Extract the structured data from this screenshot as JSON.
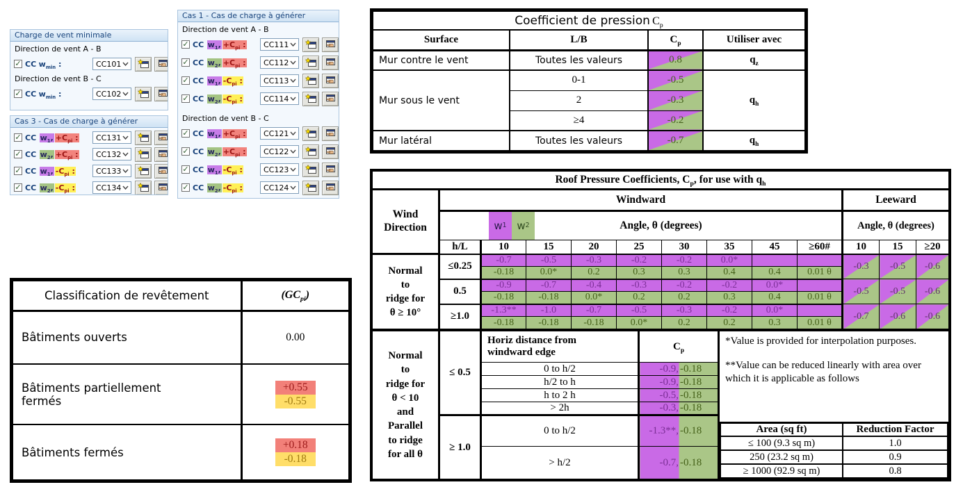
{
  "colors": {
    "roof_purple": "#c96ae6",
    "roof_green": "#aac687",
    "chip_purple": "#c77ce8",
    "chip_green": "#a3c383",
    "chip_salmon": "#f2837d",
    "chip_yellow": "#fff056",
    "gcpi_red": "#f28079",
    "gcpi_yellow": "#ffde69",
    "purple_text": "#7b2e96",
    "green_text": "#446018",
    "panel_navy": "#17417a"
  },
  "icons": {
    "checkbox_check": "✓",
    "combo_chevron": "chevron-down",
    "new_button": "new-window-with-star",
    "edit_button": "edit-hand-on-window"
  },
  "panels": {
    "cc_label": "CC",
    "wmin_def": {
      "base": "w",
      "sub": "min",
      "suffix": " :"
    },
    "chip_defs": {
      "w1": {
        "base": "w",
        "sub": "1",
        "suffix": ",",
        "cls": "chip-w1"
      },
      "w2": {
        "base": "w",
        "sub": "2",
        "suffix": ",",
        "cls": "chip-w2"
      },
      "plus": {
        "base": "+C",
        "sub": "pi",
        "suffix": " :",
        "cls": "chip-plus"
      },
      "minus": {
        "base": "-C",
        "sub": "pi",
        "suffix": " :",
        "cls": "chip-minus"
      }
    },
    "min_load": {
      "title": "Charge de vent minimale",
      "groups": [
        {
          "label": "Direction de vent A - B",
          "rows": [
            {
              "kind": "wmin",
              "cc": "CC101"
            }
          ]
        },
        {
          "label": "Direction de vent B - C",
          "rows": [
            {
              "kind": "wmin",
              "cc": "CC102"
            }
          ]
        }
      ]
    },
    "cas1": {
      "title": "Cas 1 - Cas de charge à générer",
      "groups": [
        {
          "label": "Direction de vent A - B",
          "rows": [
            {
              "kind": "w1p",
              "cc": "CC111"
            },
            {
              "kind": "w2p",
              "cc": "CC112"
            },
            {
              "kind": "w1m",
              "cc": "CC113"
            },
            {
              "kind": "w2m",
              "cc": "CC114"
            }
          ]
        },
        {
          "label": "Direction de vent B - C",
          "rows": [
            {
              "kind": "w1p",
              "cc": "CC121"
            },
            {
              "kind": "w2p",
              "cc": "CC122"
            },
            {
              "kind": "w1m",
              "cc": "CC123"
            },
            {
              "kind": "w2m",
              "cc": "CC124"
            }
          ]
        }
      ]
    },
    "cas3": {
      "title": "Cas 3 - Cas de charge à générer",
      "groups": [
        {
          "label": null,
          "rows": [
            {
              "kind": "w1p",
              "cc": "CC131"
            },
            {
              "kind": "w2p",
              "cc": "CC132"
            },
            {
              "kind": "w1m",
              "cc": "CC133"
            },
            {
              "kind": "w2m",
              "cc": "CC134"
            }
          ]
        }
      ]
    }
  },
  "cp_table": {
    "title_text": "Coefficient de pression",
    "title_sym": {
      "base": "C",
      "sub": "p"
    },
    "headers": {
      "surface": "Surface",
      "lb": "L/B",
      "cp": {
        "base": "C",
        "sub": "p"
      },
      "use": "Utiliser avec"
    },
    "rows": [
      {
        "surface": "Mur contre le vent",
        "lb": "Toutes les valeurs",
        "cp": "0.8",
        "use": {
          "base": "q",
          "sub": "z"
        }
      },
      {
        "surface": "Mur sous le vent",
        "lb": "0-1",
        "cp": "-0.5",
        "use": {
          "base": "q",
          "sub": "h"
        }
      },
      {
        "lb": "2",
        "cp": "-0.3"
      },
      {
        "lb": "≥4",
        "cp": "-0.2"
      },
      {
        "surface": "Mur latéral",
        "lb": "Toutes les valeurs",
        "cp": "-0.7",
        "use": {
          "base": "q",
          "sub": "h"
        }
      }
    ]
  },
  "gcpi_table": {
    "header_left": "Classification de revêtement",
    "header_sym": {
      "pre": "(GC",
      "sub": "pi",
      "post": ")"
    },
    "rows": [
      {
        "label": "Bâtiments ouverts",
        "plain": "0.00"
      },
      {
        "label": "Bâtiments partiellement\nfermés",
        "pos": "+0.55",
        "neg": "-0.55"
      },
      {
        "label": "Bâtiments fermés",
        "pos": "+0.18",
        "neg": "-0.18"
      }
    ]
  },
  "roof_table": {
    "title": {
      "pre": "Roof Pressure Coefficients, C",
      "sub1": "p",
      "mid": ", for use with q",
      "sub2": "h"
    },
    "wind_direction_label": "Wind Direction",
    "windward_label": "Windward",
    "leeward_label": "Leeward",
    "angle_label": "Angle, θ (degrees)",
    "chips": [
      {
        "base": "w",
        "sub": "1"
      },
      {
        "base": "w",
        "sub": "2"
      }
    ],
    "hl_label": "h/L",
    "windward_angles": [
      "10",
      "15",
      "20",
      "25",
      "30",
      "35",
      "45",
      "≥60#"
    ],
    "leeward_angles": [
      "10",
      "15",
      "≥20"
    ],
    "section1_label": [
      "Normal",
      "to",
      "ridge for",
      "θ ≥ 10°"
    ],
    "section1_rows": [
      {
        "hl": "≤0.25",
        "w1": [
          "-0.7",
          "-0.5",
          "-0.3",
          "-0.2",
          "-0.2",
          "0.0*",
          "",
          ""
        ],
        "w2": [
          "-0.18",
          "0.0*",
          "0.2",
          "0.3",
          "0.3",
          "0.4",
          "0.4",
          "0.01 θ"
        ],
        "leeward": [
          "-0.3",
          "-0.5",
          "-0.6"
        ]
      },
      {
        "hl": "0.5",
        "w1": [
          "-0.9",
          "-0.7",
          "-0.4",
          "-0.3",
          "-0.2",
          "-0.2",
          "0.0*",
          ""
        ],
        "w2": [
          "-0.18",
          "-0.18",
          "0.0*",
          "0.2",
          "0.2",
          "0.3",
          "0.4",
          "0.01 θ"
        ],
        "leeward": [
          "-0.5",
          "-0.5",
          "-0.6"
        ]
      },
      {
        "hl": "≥1.0",
        "w1": [
          "-1.3**",
          "-1.0",
          "-0.7",
          "-0.5",
          "-0.3",
          "-0.2",
          "0.0*",
          ""
        ],
        "w2": [
          "-0.18",
          "-0.18",
          "-0.18",
          "0.0*",
          "0.2",
          "0.2",
          "0.3",
          "0.01 θ"
        ],
        "leeward": [
          "-0.7",
          "-0.6",
          "-0.6"
        ]
      }
    ],
    "section2_label": [
      "Normal",
      "to",
      "ridge for",
      "θ < 10",
      "and",
      "Parallel",
      "to ridge",
      "for all θ"
    ],
    "horiz_header": [
      "Horiz distance from",
      "windward edge"
    ],
    "cp_header": {
      "base": "C",
      "sub": "p"
    },
    "section2_groups": [
      {
        "hl": "≤ 0.5",
        "rows": [
          {
            "dist": "0 to h/2",
            "w1": "-0.9,",
            "w2": "-0.18"
          },
          {
            "dist": "h/2 to h",
            "w1": "-0.9,",
            "w2": "-0.18"
          },
          {
            "dist": "h to 2 h",
            "w1": "-0.5,",
            "w2": "-0.18"
          },
          {
            "dist": "> 2h",
            "w1": "-0.3,",
            "w2": "-0.18"
          }
        ]
      },
      {
        "hl": "≥ 1.0",
        "rows": [
          {
            "dist": "0 to h/2",
            "w1": "-1.3**,",
            "w2": "-0.18"
          },
          {
            "dist": "> h/2",
            "w1": "-0.7,",
            "w2": "-0.18"
          }
        ]
      }
    ],
    "notes": [
      "*Value is provided for interpolation purposes.",
      "**Value can be reduced linearly with area over which it is applicable as follows"
    ],
    "area_table": {
      "headers": [
        "Area (sq ft)",
        "Reduction Factor"
      ],
      "rows": [
        [
          "≤ 100 (9.3 sq m)",
          "1.0"
        ],
        [
          "250 (23.2 sq m)",
          "0.9"
        ],
        [
          "≥ 1000 (92.9 sq m)",
          "0.8"
        ]
      ]
    }
  }
}
